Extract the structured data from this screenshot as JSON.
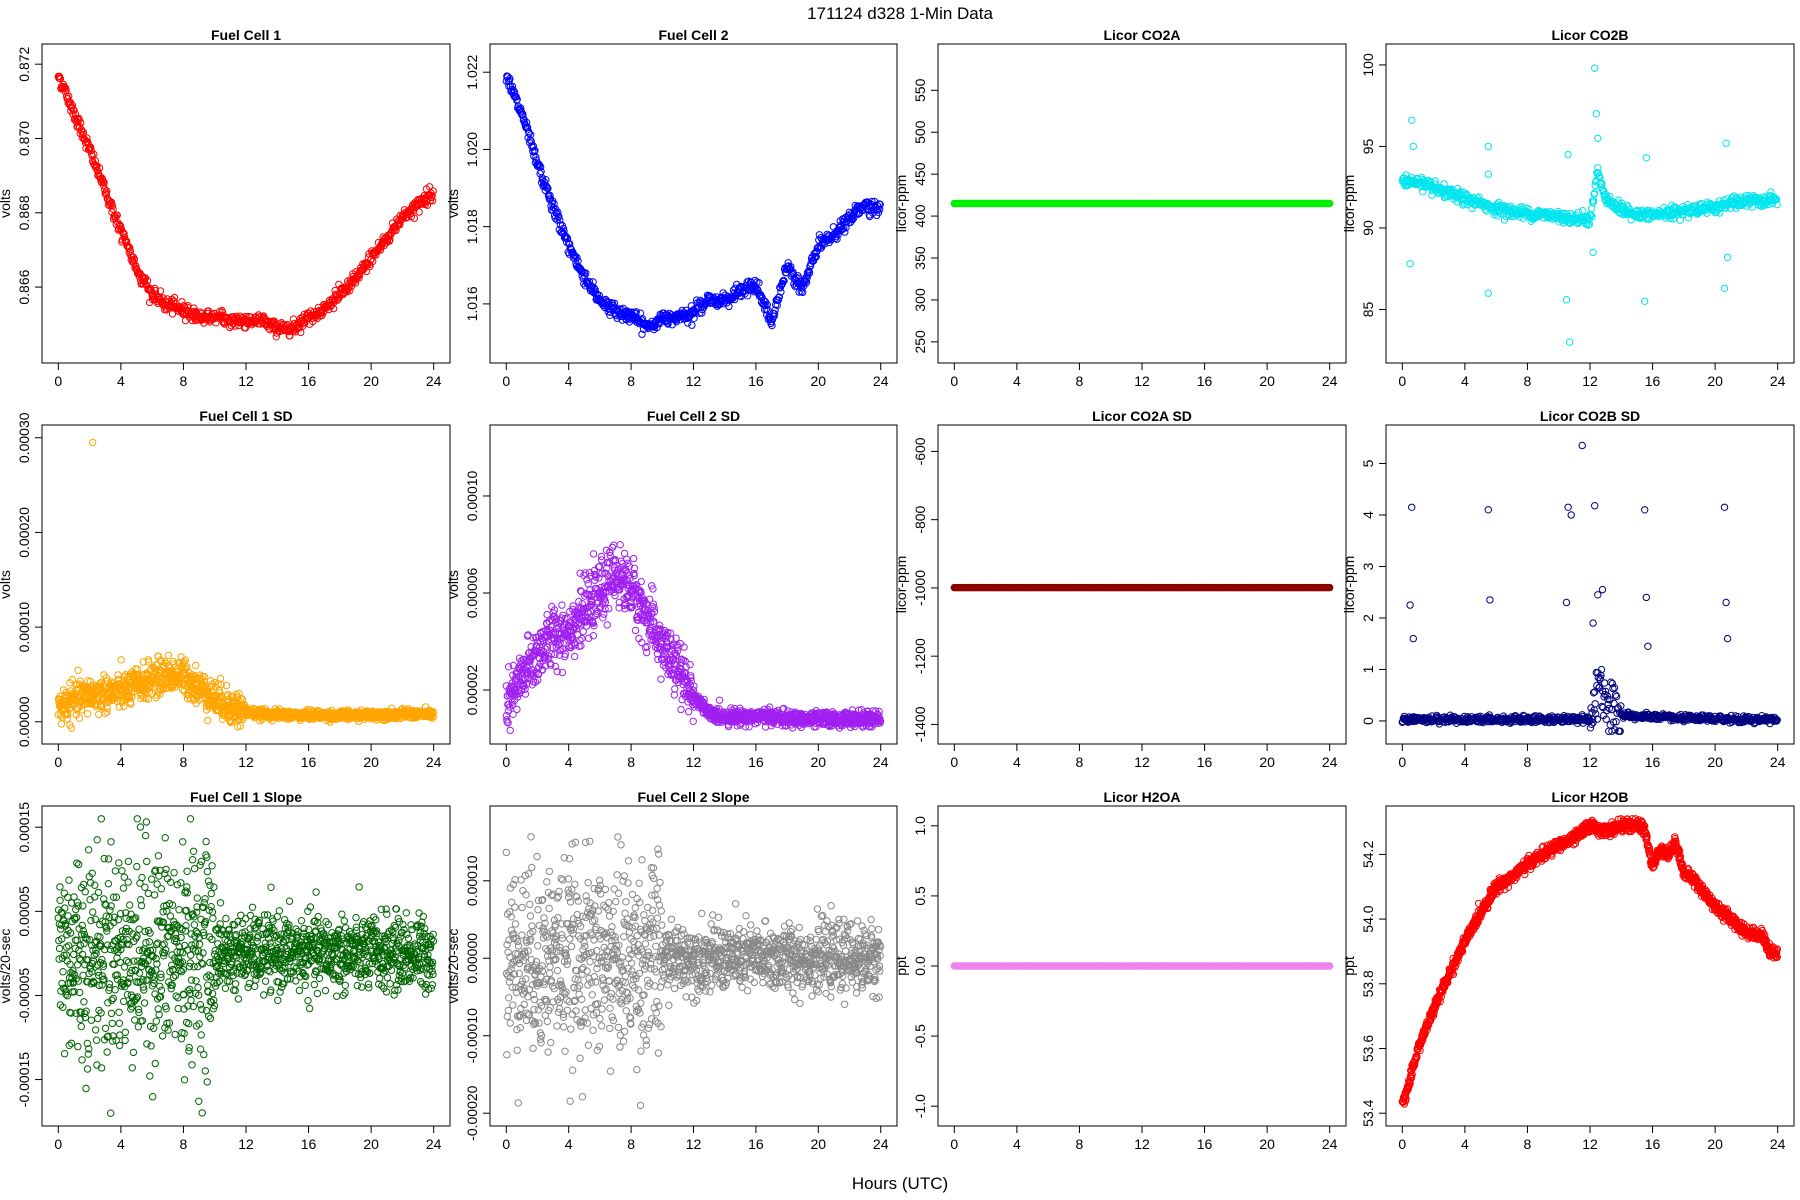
{
  "figure": {
    "title": "171124   d328   1-Min Data",
    "xlabel": "Hours (UTC)"
  },
  "chart_data": [
    {
      "type": "scatter",
      "title": "Fuel Cell 1",
      "xlabel": "",
      "ylabel": "volts",
      "xlim": [
        0,
        24
      ],
      "ylim": [
        0.8643,
        0.8722
      ],
      "xticks": [
        0,
        4,
        8,
        12,
        16,
        20,
        24
      ],
      "yticks": [
        "0.866",
        "0.868",
        "0.870",
        "0.872"
      ],
      "ytick_values": [
        0.866,
        0.868,
        0.87,
        0.872
      ],
      "color": "#ff0000",
      "marker": "circle",
      "series": [
        {
          "x": [
            0,
            1,
            2,
            3,
            4,
            5,
            6,
            7,
            8,
            9,
            10,
            11,
            12,
            13,
            14,
            15,
            16,
            17,
            18,
            19,
            20,
            21,
            22,
            23,
            24
          ],
          "y": [
            0.8717,
            0.8707,
            0.8697,
            0.8686,
            0.8675,
            0.8665,
            0.8658,
            0.8655,
            0.8654,
            0.8652,
            0.8652,
            0.8651,
            0.8651,
            0.8651,
            0.8649,
            0.8649,
            0.8652,
            0.8654,
            0.8658,
            0.8662,
            0.8668,
            0.8673,
            0.8679,
            0.8682,
            0.8686
          ]
        }
      ]
    },
    {
      "type": "scatter",
      "title": "Fuel Cell 2",
      "xlabel": "",
      "ylabel": "volts",
      "xlim": [
        0,
        24
      ],
      "ylim": [
        1.0148,
        1.0224
      ],
      "xticks": [
        0,
        4,
        8,
        12,
        16,
        20,
        24
      ],
      "yticks": [
        "1.016",
        "1.018",
        "1.020",
        "1.022"
      ],
      "ytick_values": [
        1.016,
        1.018,
        1.02,
        1.022
      ],
      "color": "#0000ff",
      "marker": "circle",
      "series": [
        {
          "x": [
            0,
            1,
            2,
            3,
            4,
            5,
            6,
            7,
            8,
            9,
            10,
            11,
            12,
            13,
            14,
            15,
            16,
            17,
            18,
            19,
            20,
            21,
            22,
            23,
            24
          ],
          "y": [
            1.0219,
            1.0209,
            1.0196,
            1.0185,
            1.0175,
            1.0167,
            1.0161,
            1.0158,
            1.0157,
            1.0154,
            1.0156,
            1.0157,
            1.0158,
            1.0161,
            1.0161,
            1.0163,
            1.0165,
            1.0155,
            1.017,
            1.0164,
            1.0175,
            1.0178,
            1.0182,
            1.0186,
            1.0184
          ]
        }
      ]
    },
    {
      "type": "scatter",
      "title": "Licor CO2A",
      "xlabel": "",
      "ylabel": "licor-ppm",
      "xlim": [
        0,
        24
      ],
      "ylim": [
        240,
        590
      ],
      "xticks": [
        0,
        4,
        8,
        12,
        16,
        20,
        24
      ],
      "yticks": [
        "250",
        "300",
        "350",
        "400",
        "450",
        "500",
        "550"
      ],
      "ytick_values": [
        250,
        300,
        350,
        400,
        450,
        500,
        550
      ],
      "color": "#00ee00",
      "marker": "filled",
      "series": [
        {
          "x": [
            0,
            24
          ],
          "y": [
            415,
            415
          ]
        }
      ]
    },
    {
      "type": "scatter",
      "title": "Licor CO2B",
      "xlabel": "",
      "ylabel": "licor-ppm",
      "xlim": [
        0,
        24
      ],
      "ylim": [
        82.5,
        100.5
      ],
      "xticks": [
        0,
        4,
        8,
        12,
        16,
        20,
        24
      ],
      "yticks": [
        "85",
        "90",
        "95",
        "100"
      ],
      "ytick_values": [
        85,
        90,
        95,
        100
      ],
      "color": "#00e5ee",
      "marker": "circle",
      "series": [
        {
          "x": [
            0,
            1,
            2,
            3,
            4,
            5,
            6,
            7,
            8,
            9,
            10,
            11,
            12,
            12.5,
            13,
            14,
            15,
            16,
            17,
            18,
            19,
            20,
            21,
            22,
            23,
            24
          ],
          "y": [
            92.9,
            92.8,
            92.4,
            92.1,
            91.8,
            91.5,
            91.2,
            91.0,
            90.9,
            90.8,
            90.7,
            90.6,
            90.5,
            93.5,
            91.8,
            91.1,
            90.8,
            90.8,
            90.9,
            91.0,
            91.2,
            91.3,
            91.5,
            91.6,
            91.7,
            91.7
          ]
        },
        {
          "x": [
            0.5,
            0.6,
            0.7,
            5.5,
            5.5,
            5.5,
            10.5,
            10.6,
            10.7,
            12.2,
            12.3,
            12.4,
            12.5,
            15.5,
            15.6,
            20.6,
            20.7,
            20.8
          ],
          "y": [
            87.8,
            96.6,
            95.0,
            86.0,
            95.0,
            93.3,
            85.6,
            94.5,
            83.0,
            88.5,
            99.8,
            97.0,
            95.5,
            85.5,
            94.3,
            86.3,
            95.2,
            88.2
          ]
        }
      ]
    },
    {
      "type": "scatter",
      "title": "Fuel Cell 1 SD",
      "xlabel": "",
      "ylabel": "volts",
      "xlim": [
        0,
        24
      ],
      "ylim": [
        -1e-05,
        0.0003
      ],
      "xticks": [
        0,
        4,
        8,
        12,
        16,
        20,
        24
      ],
      "yticks": [
        "0.00000",
        "0.00010",
        "0.00020",
        "0.00030"
      ],
      "ytick_values": [
        0,
        0.0001,
        0.0002,
        0.0003
      ],
      "color": "#ffa500",
      "marker": "circle",
      "series": [
        {
          "x": [
            0,
            1,
            2,
            3,
            4,
            5,
            6,
            7,
            8,
            9,
            10,
            11,
            12,
            13,
            14,
            15,
            16,
            17,
            18,
            19,
            20,
            21,
            22,
            23,
            24
          ],
          "y": [
            1.5e-05,
            2.2e-05,
            2.8e-05,
            3e-05,
            3.2e-05,
            3.8e-05,
            4.5e-05,
            5e-05,
            4.8e-05,
            3.6e-05,
            2.5e-05,
            1.6e-05,
            1e-05,
            8e-06,
            8e-06,
            7e-06,
            7e-06,
            7e-06,
            7e-06,
            7e-06,
            7e-06,
            8e-06,
            8e-06,
            8e-06,
            8e-06
          ]
        },
        {
          "x": [
            2.2
          ],
          "y": [
            0.000295
          ]
        }
      ]
    },
    {
      "type": "scatter",
      "title": "Fuel Cell 2 SD",
      "xlabel": "",
      "ylabel": "volts",
      "xlim": [
        0,
        24
      ],
      "ylim": [
        3e-06,
        0.000124
      ],
      "xticks": [
        0,
        4,
        8,
        12,
        16,
        20,
        24
      ],
      "yticks": [
        "0.00002",
        "0.00006",
        "0.00010"
      ],
      "ytick_values": [
        2e-05,
        6e-05,
        0.0001
      ],
      "color": "#a020f0",
      "marker": "circle",
      "series": [
        {
          "x": [
            0,
            1,
            2,
            3,
            4,
            5,
            6,
            7,
            8,
            9,
            10,
            11,
            12,
            13,
            14,
            15,
            16,
            17,
            18,
            19,
            20,
            21,
            22,
            23,
            24
          ],
          "y": [
            1.2e-05,
            2.5e-05,
            3.5e-05,
            4.2e-05,
            4.5e-05,
            5.2e-05,
            6e-05,
            6.8e-05,
            6.2e-05,
            5e-05,
            3.8e-05,
            2.8e-05,
            1.8e-05,
            1e-05,
            9e-06,
            9e-06,
            9e-06,
            9e-06,
            8e-06,
            8e-06,
            8e-06,
            8e-06,
            8e-06,
            8e-06,
            8e-06
          ]
        }
      ]
    },
    {
      "type": "scatter",
      "title": "Licor CO2A SD",
      "xlabel": "",
      "ylabel": "licor-ppm",
      "xlim": [
        0,
        24
      ],
      "ylim": [
        -1420,
        -560
      ],
      "xticks": [
        0,
        4,
        8,
        12,
        16,
        20,
        24
      ],
      "yticks": [
        "-1400",
        "-1200",
        "-1000",
        "-800",
        "-600"
      ],
      "ytick_values": [
        -1400,
        -1200,
        -1000,
        -800,
        -600
      ],
      "color": "#8b0000",
      "marker": "filled",
      "series": [
        {
          "x": [
            0,
            24
          ],
          "y": [
            -999,
            -999
          ]
        }
      ]
    },
    {
      "type": "scatter",
      "title": "Licor CO2B SD",
      "xlabel": "",
      "ylabel": "licor-ppm",
      "xlim": [
        0,
        24
      ],
      "ylim": [
        -0.2,
        5.5
      ],
      "xticks": [
        0,
        4,
        8,
        12,
        16,
        20,
        24
      ],
      "yticks": [
        "0",
        "1",
        "2",
        "3",
        "4",
        "5"
      ],
      "ytick_values": [
        0,
        1,
        2,
        3,
        4,
        5
      ],
      "color": "#000080",
      "marker": "circle",
      "series": [
        {
          "x": [
            0,
            2,
            4,
            6,
            8,
            10,
            12,
            12.5,
            13,
            14,
            16,
            18,
            20,
            22,
            24
          ],
          "y": [
            0.03,
            0.03,
            0.03,
            0.03,
            0.03,
            0.03,
            0.04,
            0.6,
            0.3,
            0.1,
            0.08,
            0.05,
            0.04,
            0.03,
            0.03
          ]
        },
        {
          "x": [
            0.5,
            0.6,
            0.7,
            5.5,
            5.6,
            10.5,
            10.6,
            10.8,
            12.2,
            12.3,
            12.5,
            12.8,
            15.5,
            15.6,
            15.7,
            20.6,
            20.7,
            20.8,
            11.5
          ],
          "y": [
            2.25,
            4.15,
            1.6,
            4.1,
            2.35,
            2.3,
            4.15,
            4.0,
            1.9,
            4.18,
            2.45,
            2.55,
            4.1,
            2.4,
            1.45,
            4.15,
            2.3,
            1.6,
            5.35
          ]
        }
      ]
    },
    {
      "type": "scatter",
      "title": "Fuel Cell 1 Slope",
      "xlabel": "",
      "ylabel": "volts/20-sec",
      "xlim": [
        0,
        24
      ],
      "ylim": [
        -0.00019,
        0.00016
      ],
      "xticks": [
        0,
        4,
        8,
        12,
        16,
        20,
        24
      ],
      "yticks": [
        "-0.00015",
        "-0.00005",
        "0.00005",
        "0.00015"
      ],
      "ytick_values": [
        -0.00015,
        -5e-05,
        5e-05,
        0.00015
      ],
      "color": "#006400",
      "marker": "circle",
      "series": [
        {
          "x": [
            0,
            4,
            8,
            12,
            16,
            20,
            24
          ],
          "y": [
            0.0,
            0.0,
            0.0,
            0.0,
            0.0,
            0.0,
            0.0
          ]
        }
      ]
    },
    {
      "type": "scatter",
      "title": "Fuel Cell 2 Slope",
      "xlabel": "",
      "ylabel": "volts/20-sec",
      "xlim": [
        0,
        24
      ],
      "ylim": [
        -0.0002,
        0.00018
      ],
      "xticks": [
        0,
        4,
        8,
        12,
        16,
        20,
        24
      ],
      "yticks": [
        "-0.00020",
        "-0.00010",
        "0.00000",
        "0.00010"
      ],
      "ytick_values": [
        -0.0002,
        -0.0001,
        0,
        0.0001
      ],
      "color": "#888888",
      "marker": "circle",
      "series": [
        {
          "x": [
            0,
            4,
            8,
            12,
            16,
            20,
            24
          ],
          "y": [
            0.0,
            0.0,
            0.0,
            0.0,
            0.0,
            0.0,
            0.0
          ]
        }
      ]
    },
    {
      "type": "scatter",
      "title": "Licor H2OA",
      "xlabel": "",
      "ylabel": "ppt",
      "xlim": [
        0,
        24
      ],
      "ylim": [
        -1.05,
        1.05
      ],
      "xticks": [
        0,
        4,
        8,
        12,
        16,
        20,
        24
      ],
      "yticks": [
        "-1.0",
        "-0.5",
        "0.0",
        "0.5",
        "1.0"
      ],
      "ytick_values": [
        -1.0,
        -0.5,
        0.0,
        0.5,
        1.0
      ],
      "color": "#ee82ee",
      "marker": "filled",
      "series": [
        {
          "x": [
            0,
            24
          ],
          "y": [
            0,
            0
          ]
        }
      ]
    },
    {
      "type": "scatter",
      "title": "Licor H2OB",
      "xlabel": "",
      "ylabel": "ppt",
      "xlim": [
        0,
        24
      ],
      "ylim": [
        53.4,
        54.31
      ],
      "xticks": [
        0,
        4,
        8,
        12,
        16,
        20,
        24
      ],
      "yticks": [
        "53.4",
        "53.6",
        "53.8",
        "54.0",
        "54.2"
      ],
      "ytick_values": [
        53.4,
        53.6,
        53.8,
        54.0,
        54.2
      ],
      "color": "#ff0000",
      "marker": "circle",
      "series": [
        {
          "x": [
            0,
            0.5,
            1,
            2,
            3,
            4,
            5,
            6,
            7,
            8,
            9,
            10,
            11,
            12,
            13,
            14,
            15,
            15.5,
            16,
            16.5,
            17,
            17.5,
            18,
            18.5,
            19,
            20,
            21,
            22,
            23,
            23.5,
            24
          ],
          "y": [
            53.43,
            53.5,
            53.6,
            53.72,
            53.83,
            53.93,
            54.02,
            54.1,
            54.13,
            54.17,
            54.2,
            54.23,
            54.25,
            54.29,
            54.27,
            54.29,
            54.29,
            54.28,
            54.16,
            54.22,
            54.2,
            54.24,
            54.14,
            54.13,
            54.1,
            54.04,
            54.0,
            53.96,
            53.95,
            53.9,
            53.89
          ]
        }
      ]
    }
  ]
}
